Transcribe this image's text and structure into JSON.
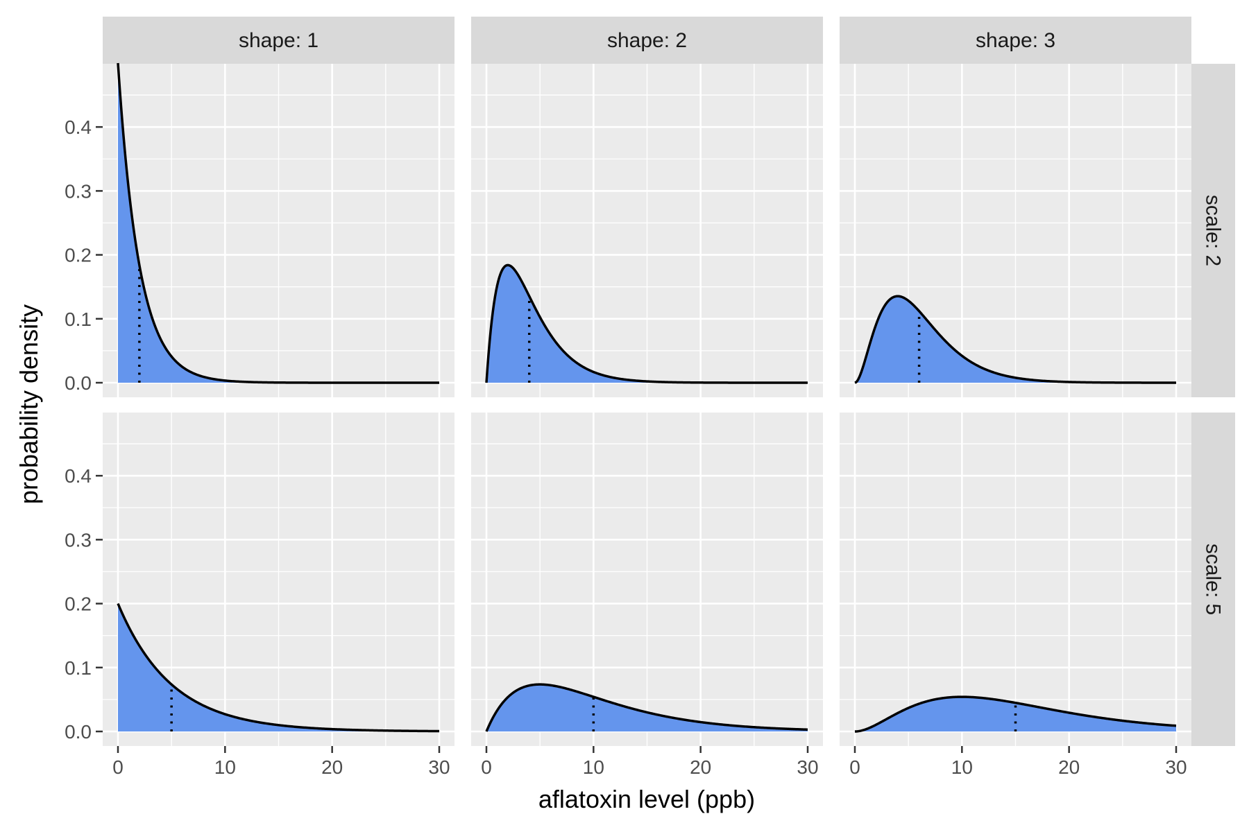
{
  "chart_data": {
    "type": "area",
    "distribution": "gamma",
    "xlabel": "aflatoxin level (ppb)",
    "ylabel": "probability density",
    "xlim": [
      0,
      30
    ],
    "ylim": [
      0,
      0.475
    ],
    "x_ticks": [
      0,
      10,
      20,
      30
    ],
    "y_ticks": [
      0.0,
      0.1,
      0.2,
      0.3,
      0.4
    ],
    "grid": true,
    "fill_color": "#6495ED",
    "line_color": "#000000",
    "shapes": [
      1,
      2,
      3
    ],
    "scales": [
      2,
      5
    ],
    "col_strips": [
      "shape: 1",
      "shape: 2",
      "shape: 3"
    ],
    "row_strips": [
      "scale: 2",
      "scale: 5"
    ],
    "panels": [
      {
        "shape": 1,
        "scale": 2,
        "mean": 2,
        "peak_density": 0.475
      },
      {
        "shape": 2,
        "scale": 2,
        "mean": 4,
        "peak_density": 0.184
      },
      {
        "shape": 3,
        "scale": 2,
        "mean": 6,
        "peak_density": 0.135
      },
      {
        "shape": 1,
        "scale": 5,
        "mean": 5,
        "peak_density": 0.196
      },
      {
        "shape": 2,
        "scale": 5,
        "mean": 10,
        "peak_density": 0.074
      },
      {
        "shape": 3,
        "scale": 5,
        "mean": 15,
        "peak_density": 0.054
      }
    ]
  }
}
